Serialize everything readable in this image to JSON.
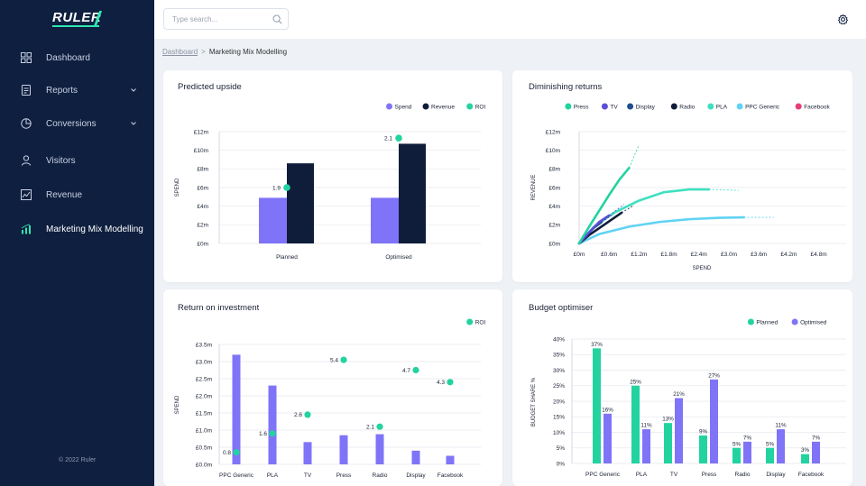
{
  "brand": {
    "name": "RULER"
  },
  "sidebar": {
    "items": [
      {
        "label": "Dashboard",
        "icon": "grid-icon",
        "chevron": false,
        "active": false
      },
      {
        "label": "Reports",
        "icon": "report-icon",
        "chevron": true,
        "active": false
      },
      {
        "label": "Conversions",
        "icon": "pie-icon",
        "chevron": true,
        "active": false
      },
      {
        "label": "Visitors",
        "icon": "user-icon",
        "chevron": false,
        "active": false
      },
      {
        "label": "Revenue",
        "icon": "revenue-icon",
        "chevron": false,
        "active": false
      },
      {
        "label": "Marketing Mix Modelling",
        "icon": "bar-chart-icon",
        "chevron": false,
        "active": true
      }
    ],
    "copyright": "© 2022 Ruler"
  },
  "topbar": {
    "search_placeholder": "Type search..."
  },
  "breadcrumb": {
    "root": "Dashboard",
    "separator": ">",
    "current": "Marketing Mix Modelling"
  },
  "colors": {
    "sidebar_bg": "#0e1f3f",
    "accent_green": "#2ee6b0",
    "spend": "#7f74f7",
    "revenue": "#0f1d3a",
    "roi": "#22d3a0",
    "press": "#22d3a0",
    "tv": "#5b4fd8",
    "display": "#1f4e8c",
    "radio": "#0f1d3a",
    "pla": "#3fe0c0",
    "ppc_generic": "#5fd3f3",
    "facebook": "#e63e76",
    "planned": "#22d3a0",
    "optimised": "#7f74f7"
  },
  "chart_data": [
    {
      "id": "predicted_upside",
      "type": "bar",
      "title": "Predicted upside",
      "ylabel": "SPEND",
      "yticks": [
        "£0m",
        "£2m",
        "£4m",
        "£6m",
        "£8m",
        "£10m",
        "£12m"
      ],
      "ylim": [
        0,
        12
      ],
      "categories": [
        "Planned",
        "Optimised"
      ],
      "series": [
        {
          "name": "Spend",
          "values": [
            4.9,
            4.9
          ]
        },
        {
          "name": "Revenue",
          "values": [
            8.6,
            10.7
          ]
        }
      ],
      "roi": {
        "name": "ROI",
        "values": [
          1.9,
          2.1
        ],
        "labels": [
          "1.9",
          "2.1"
        ],
        "y": [
          6.0,
          11.3
        ]
      },
      "legend": "top-right"
    },
    {
      "id": "diminishing_returns",
      "type": "line",
      "title": "Diminishing returns",
      "xlabel": "SPEND",
      "ylabel": "REVENUE",
      "xticks": [
        "£0m",
        "£0.6m",
        "£1.2m",
        "£1.8m",
        "£2.4m",
        "£3.0m",
        "£3.6m",
        "£4.2m",
        "£4.8m"
      ],
      "yticks": [
        "£0m",
        "£2m",
        "£4m",
        "£6m",
        "£8m",
        "£10m",
        "£12m"
      ],
      "xlim": [
        0,
        4.8
      ],
      "ylim": [
        0,
        12
      ],
      "series": [
        {
          "name": "Press",
          "points": [
            [
              0,
              0
            ],
            [
              0.2,
              1.8
            ],
            [
              0.4,
              3.5
            ],
            [
              0.6,
              5.2
            ],
            [
              0.8,
              6.8
            ],
            [
              1.0,
              8.1
            ]
          ],
          "projection": [
            [
              1.0,
              8.1
            ],
            [
              1.2,
              10.6
            ]
          ]
        },
        {
          "name": "TV",
          "points": [
            [
              0,
              0
            ],
            [
              0.2,
              1.2
            ],
            [
              0.4,
              2.3
            ],
            [
              0.6,
              3.0
            ]
          ],
          "projection": [
            [
              0.6,
              3.0
            ],
            [
              0.9,
              4.2
            ]
          ]
        },
        {
          "name": "Display",
          "points": [
            [
              0,
              0
            ],
            [
              0.15,
              0.9
            ],
            [
              0.3,
              1.7
            ],
            [
              0.45,
              2.3
            ]
          ],
          "projection": [
            [
              0.45,
              2.3
            ],
            [
              0.7,
              3.2
            ]
          ]
        },
        {
          "name": "Radio",
          "points": [
            [
              0,
              0
            ],
            [
              0.2,
              0.9
            ],
            [
              0.5,
              2.0
            ],
            [
              0.85,
              3.3
            ]
          ],
          "projection": [
            [
              0.85,
              3.3
            ],
            [
              1.1,
              4.1
            ]
          ]
        },
        {
          "name": "PLA",
          "points": [
            [
              0,
              0
            ],
            [
              0.3,
              1.8
            ],
            [
              0.7,
              3.3
            ],
            [
              1.2,
              4.6
            ],
            [
              1.7,
              5.5
            ],
            [
              2.2,
              5.8
            ],
            [
              2.6,
              5.8
            ]
          ],
          "projection": [
            [
              2.6,
              5.8
            ],
            [
              3.2,
              5.7
            ]
          ]
        },
        {
          "name": "PPC Generic",
          "points": [
            [
              0,
              0
            ],
            [
              0.4,
              1.0
            ],
            [
              1.0,
              1.8
            ],
            [
              1.6,
              2.3
            ],
            [
              2.2,
              2.6
            ],
            [
              2.8,
              2.75
            ],
            [
              3.3,
              2.8
            ]
          ],
          "projection": [
            [
              3.3,
              2.8
            ],
            [
              3.9,
              2.8
            ]
          ]
        },
        {
          "name": "Facebook",
          "points": [],
          "projection": []
        }
      ],
      "legend": "top-right"
    },
    {
      "id": "return_on_investment",
      "type": "bar",
      "title": "Return on investment",
      "ylabel": "SPEND",
      "yticks": [
        "£0.0m",
        "£0.5m",
        "£1.0m",
        "£1.5m",
        "£2.0m",
        "£2.5m",
        "£3.0m",
        "£3.5m"
      ],
      "ylim": [
        0,
        3.5
      ],
      "categories": [
        "PPC Generic",
        "PLA",
        "TV",
        "Press",
        "Radio",
        "Display",
        "Facebook"
      ],
      "series": [
        {
          "name": "Spend",
          "values": [
            3.2,
            2.3,
            0.65,
            0.85,
            0.88,
            0.4,
            0.25
          ]
        }
      ],
      "roi": {
        "name": "ROI",
        "labels": [
          "0.8",
          "1.6",
          "2.6",
          "5.4",
          "2.1",
          "4.7",
          "4.3"
        ],
        "y": [
          0.35,
          0.9,
          1.45,
          3.05,
          1.1,
          2.75,
          2.4
        ]
      },
      "legend": "top-right"
    },
    {
      "id": "budget_optimiser",
      "type": "bar",
      "title": "Budget optimiser",
      "ylabel": "BUDGET SHARE %",
      "yticks": [
        "0%",
        "5%",
        "10%",
        "15%",
        "20%",
        "25%",
        "30%",
        "35%",
        "40%"
      ],
      "ylim": [
        0,
        40
      ],
      "categories": [
        "PPC Generic",
        "PLA",
        "TV",
        "Press",
        "Radio",
        "Display",
        "Facebook"
      ],
      "series": [
        {
          "name": "Planned",
          "values": [
            37,
            25,
            13,
            9,
            5,
            5,
            3
          ],
          "labels": [
            "37%",
            "25%",
            "13%",
            "9%",
            "5%",
            "5%",
            "3%"
          ]
        },
        {
          "name": "Optimised",
          "values": [
            16,
            11,
            21,
            27,
            7,
            11,
            7
          ],
          "labels": [
            "16%",
            "11%",
            "21%",
            "27%",
            "7%",
            "11%",
            "7%"
          ]
        }
      ],
      "legend": "top-right"
    }
  ]
}
